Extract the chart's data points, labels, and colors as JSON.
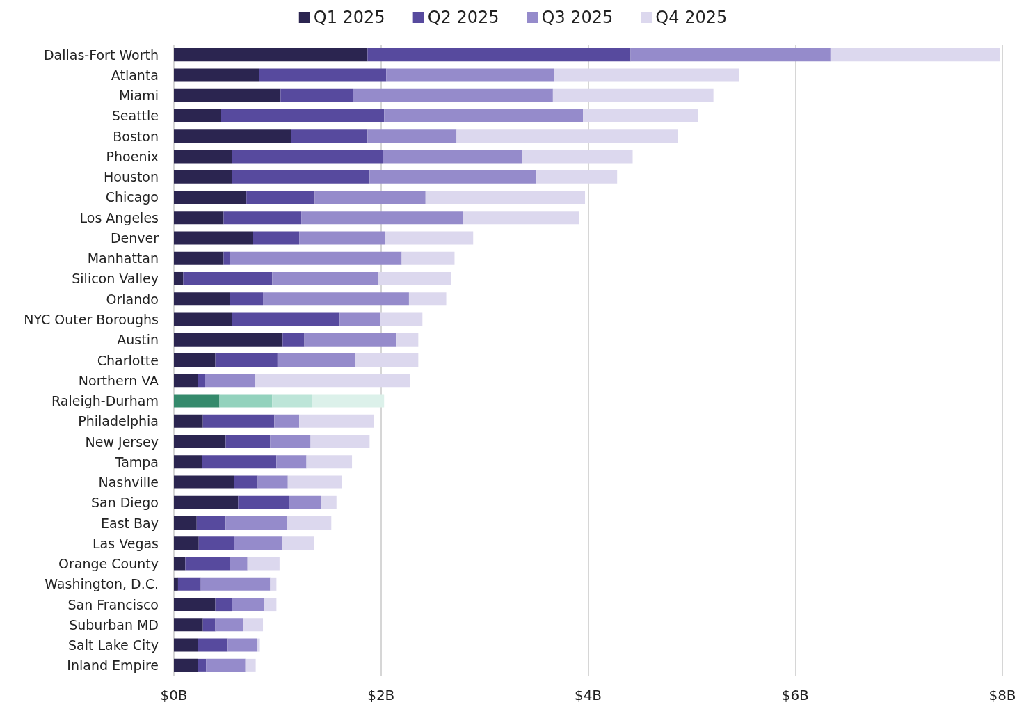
{
  "chart_data": {
    "type": "bar",
    "orientation": "horizontal",
    "stacked": true,
    "legend": "top",
    "grid": "x",
    "categories": [
      "Dallas-Fort Worth",
      "Atlanta",
      "Miami",
      "Seattle",
      "Boston",
      "Phoenix",
      "Houston",
      "Chicago",
      "Los Angeles",
      "Denver",
      "Manhattan",
      "Silicon Valley",
      "Orlando",
      "NYC Outer Boroughs",
      "Austin",
      "Charlotte",
      "Northern VA",
      "Raleigh-Durham",
      "Philadelphia",
      "New Jersey",
      "Tampa",
      "Nashville",
      "San Diego",
      "East Bay",
      "Las Vegas",
      "Orange County",
      "Washington, D.C.",
      "San Francisco",
      "Suburban MD",
      "Salt Lake City",
      "Inland Empire"
    ],
    "xlim": [
      0,
      8
    ],
    "xticks": [
      {
        "value": 0,
        "label": "$0B"
      },
      {
        "value": 2,
        "label": "$2B"
      },
      {
        "value": 4,
        "label": "$4B"
      },
      {
        "value": 6,
        "label": "$6B"
      },
      {
        "value": 8,
        "label": "$8B"
      }
    ],
    "series": [
      {
        "name": "Q1 2025",
        "color": "#2b2550",
        "colors": [
          "#2b2550",
          "#2b2550",
          "#2b2550",
          "#2b2550",
          "#2b2550",
          "#2b2550",
          "#2b2550",
          "#2b2550",
          "#2b2550",
          "#2b2550",
          "#2b2550",
          "#2b2550",
          "#2b2550",
          "#2b2550",
          "#2b2550",
          "#2b2550",
          "#2b2550",
          "#358a6c",
          "#2b2550",
          "#2b2550",
          "#2b2550",
          "#2b2550",
          "#2b2550",
          "#2b2550",
          "#2b2550",
          "#2b2550",
          "#2b2550",
          "#2b2550",
          "#2b2550",
          "#2b2550",
          "#2b2550"
        ],
        "values": [
          1.87,
          0.82,
          1.03,
          0.45,
          1.13,
          0.56,
          0.56,
          0.7,
          0.48,
          0.76,
          0.48,
          0.09,
          0.54,
          0.56,
          1.05,
          0.4,
          0.23,
          0.44,
          0.28,
          0.5,
          0.27,
          0.58,
          0.62,
          0.22,
          0.24,
          0.11,
          0.04,
          0.4,
          0.28,
          0.23,
          0.23
        ]
      },
      {
        "name": "Q2 2025",
        "color": "#574a9e",
        "colors": [
          "#574a9e",
          "#574a9e",
          "#574a9e",
          "#574a9e",
          "#574a9e",
          "#574a9e",
          "#574a9e",
          "#574a9e",
          "#574a9e",
          "#574a9e",
          "#574a9e",
          "#574a9e",
          "#574a9e",
          "#574a9e",
          "#574a9e",
          "#574a9e",
          "#574a9e",
          "#93d2bd",
          "#574a9e",
          "#574a9e",
          "#574a9e",
          "#574a9e",
          "#574a9e",
          "#574a9e",
          "#574a9e",
          "#574a9e",
          "#574a9e",
          "#574a9e",
          "#574a9e",
          "#574a9e",
          "#574a9e"
        ],
        "values": [
          2.54,
          1.23,
          0.7,
          1.58,
          0.74,
          1.46,
          1.33,
          0.66,
          0.75,
          0.45,
          0.06,
          0.86,
          0.32,
          1.04,
          0.21,
          0.6,
          0.07,
          0.51,
          0.69,
          0.43,
          0.72,
          0.23,
          0.49,
          0.28,
          0.34,
          0.43,
          0.22,
          0.16,
          0.12,
          0.29,
          0.08
        ]
      },
      {
        "name": "Q3 2025",
        "color": "#958bcb",
        "colors": [
          "#958bcb",
          "#958bcb",
          "#958bcb",
          "#958bcb",
          "#958bcb",
          "#958bcb",
          "#958bcb",
          "#958bcb",
          "#958bcb",
          "#958bcb",
          "#958bcb",
          "#958bcb",
          "#958bcb",
          "#958bcb",
          "#958bcb",
          "#958bcb",
          "#958bcb",
          "#bde5d8",
          "#958bcb",
          "#958bcb",
          "#958bcb",
          "#958bcb",
          "#958bcb",
          "#958bcb",
          "#958bcb",
          "#958bcb",
          "#958bcb",
          "#958bcb",
          "#958bcb",
          "#958bcb",
          "#958bcb"
        ],
        "values": [
          1.93,
          1.62,
          1.93,
          1.92,
          0.86,
          1.34,
          1.61,
          1.07,
          1.56,
          0.83,
          1.66,
          1.02,
          1.41,
          0.39,
          0.89,
          0.75,
          0.48,
          0.38,
          0.24,
          0.39,
          0.29,
          0.29,
          0.31,
          0.59,
          0.47,
          0.17,
          0.67,
          0.31,
          0.27,
          0.28,
          0.38
        ]
      },
      {
        "name": "Q4 2025",
        "color": "#dcd8ee",
        "colors": [
          "#dcd8ee",
          "#dcd8ee",
          "#dcd8ee",
          "#dcd8ee",
          "#dcd8ee",
          "#dcd8ee",
          "#dcd8ee",
          "#dcd8ee",
          "#dcd8ee",
          "#dcd8ee",
          "#dcd8ee",
          "#dcd8ee",
          "#dcd8ee",
          "#dcd8ee",
          "#dcd8ee",
          "#dcd8ee",
          "#dcd8ee",
          "#dcf1ea",
          "#dcd8ee",
          "#dcd8ee",
          "#dcd8ee",
          "#dcd8ee",
          "#dcd8ee",
          "#dcd8ee",
          "#dcd8ee",
          "#dcd8ee",
          "#dcd8ee",
          "#dcd8ee",
          "#dcd8ee",
          "#dcd8ee",
          "#dcd8ee"
        ],
        "values": [
          1.64,
          1.79,
          1.55,
          1.11,
          2.14,
          1.07,
          0.78,
          1.54,
          1.12,
          0.85,
          0.51,
          0.71,
          0.36,
          0.41,
          0.21,
          0.61,
          1.5,
          0.7,
          0.72,
          0.57,
          0.44,
          0.52,
          0.15,
          0.43,
          0.3,
          0.31,
          0.06,
          0.12,
          0.19,
          0.03,
          0.1
        ]
      }
    ]
  }
}
